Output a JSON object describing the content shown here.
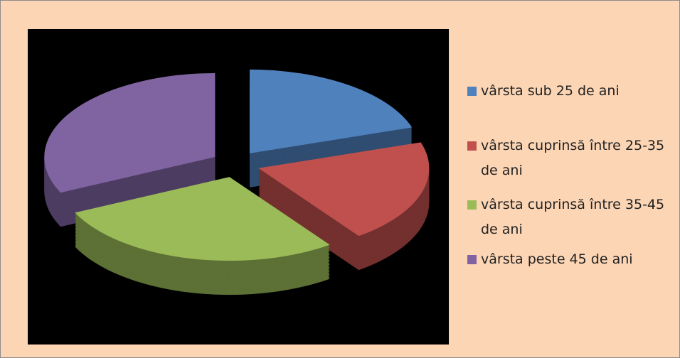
{
  "chart_data": {
    "type": "pie",
    "categories": [
      "vârsta sub 25 de ani",
      "vârsta cuprinsă între 25-35 de ani",
      "vârsta cuprinsă între 35-45 de ani",
      "vârsta peste 45 de ani"
    ],
    "values": [
      20,
      20,
      28,
      32
    ],
    "colors": [
      "#4f81bd",
      "#c0504d",
      "#9bbb59",
      "#8064a2"
    ],
    "legend": "right"
  }
}
